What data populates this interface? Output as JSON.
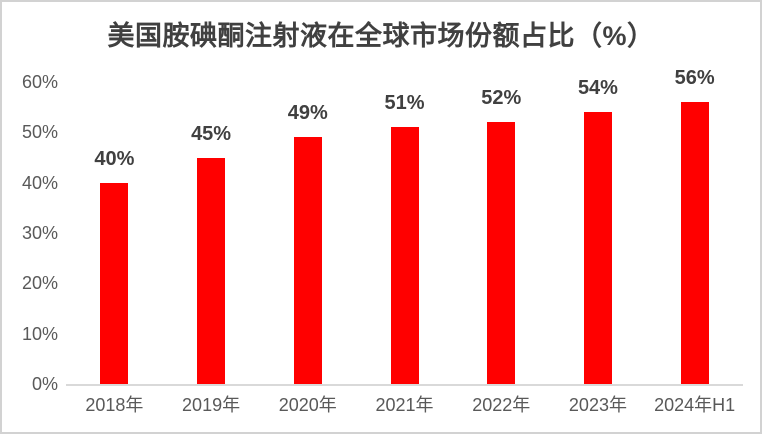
{
  "chart_data": {
    "type": "bar",
    "title": "美国胺碘酮注射液在全球市场份额占比（%）",
    "categories": [
      "2018年",
      "2019年",
      "2020年",
      "2021年",
      "2022年",
      "2023年",
      "2024年H1"
    ],
    "values": [
      40,
      45,
      49,
      51,
      52,
      54,
      56
    ],
    "data_labels": [
      "40%",
      "45%",
      "49%",
      "51%",
      "52%",
      "54%",
      "56%"
    ],
    "y_ticks": [
      "0%",
      "10%",
      "20%",
      "30%",
      "40%",
      "50%",
      "60%"
    ],
    "y_tick_values": [
      0,
      10,
      20,
      30,
      40,
      50,
      60
    ],
    "ylim": [
      0,
      60
    ],
    "xlabel": "",
    "ylabel": "",
    "grid": false,
    "legend": null,
    "colors": {
      "bar": "#ff0000",
      "data_label": "#404040",
      "title": "#404040",
      "tick_label": "#595959",
      "axis_line": "#d9d9d9",
      "background": "#ffffff",
      "border": "#d2d2d2"
    }
  }
}
